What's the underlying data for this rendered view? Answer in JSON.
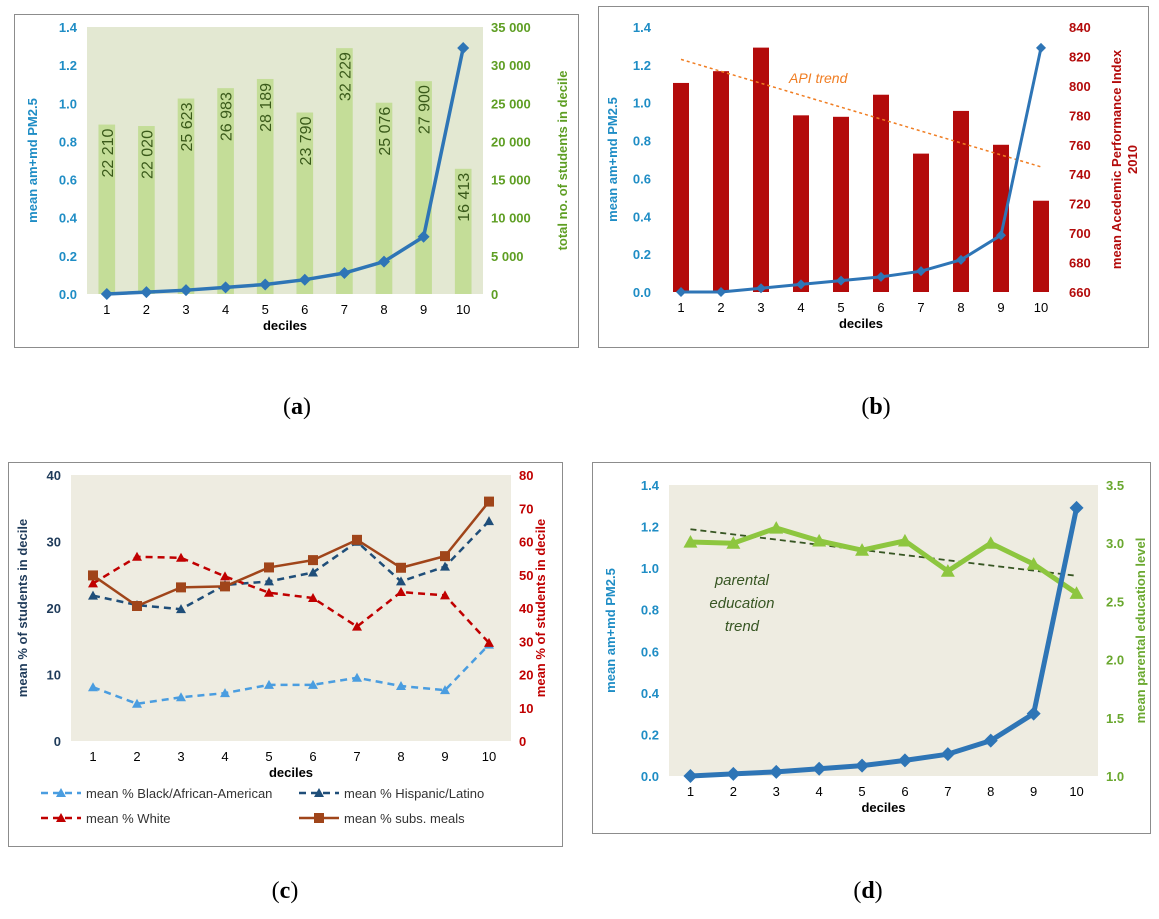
{
  "captions": {
    "a": "a",
    "b": "b",
    "c": "c",
    "d": "d"
  },
  "chart_data": [
    {
      "panel": "a",
      "type": "bar+line",
      "categories": [
        "1",
        "2",
        "3",
        "4",
        "5",
        "6",
        "7",
        "8",
        "9",
        "10"
      ],
      "xlabel": "deciles",
      "ylabel": "mean am+md PM2.5",
      "y2label": "total no. of students in decile",
      "ylim": [
        0,
        1.4
      ],
      "yticks": [
        "0.0",
        "0.2",
        "0.4",
        "0.6",
        "0.8",
        "1.0",
        "1.2",
        "1.4"
      ],
      "y2lim": [
        0,
        35000
      ],
      "y2ticks": [
        "0",
        "5 000",
        "10 000",
        "15 000",
        "20 000",
        "25 000",
        "30 000",
        "35 000"
      ],
      "bars": {
        "axis": "right",
        "color": "#c4dd98",
        "values": [
          22210,
          22020,
          25623,
          26983,
          28189,
          23790,
          32229,
          25076,
          27900,
          16413
        ],
        "labels": [
          "22 210",
          "22 020",
          "25 623",
          "26 983",
          "28 189",
          "23 790",
          "32 229",
          "25 076",
          "27 900",
          "16 413"
        ]
      },
      "line": {
        "axis": "left",
        "color": "#2e75b6",
        "values": [
          0.0,
          0.01,
          0.02,
          0.035,
          0.05,
          0.075,
          0.11,
          0.17,
          0.3,
          1.29
        ]
      },
      "plot_bg": "#e3e8d2"
    },
    {
      "panel": "b",
      "type": "bar+line",
      "categories": [
        "1",
        "2",
        "3",
        "4",
        "5",
        "6",
        "7",
        "8",
        "9",
        "10"
      ],
      "xlabel": "deciles",
      "ylabel": "mean am+md PM2.5",
      "y2label": "mean Acedemic Performance Index 2010",
      "y2label_lines": [
        "mean Acedemic Performance Index",
        "2010"
      ],
      "ylim": [
        0,
        1.4
      ],
      "yticks": [
        "0.0",
        "0.2",
        "0.4",
        "0.6",
        "0.8",
        "1.0",
        "1.2",
        "1.4"
      ],
      "y2lim": [
        660,
        840
      ],
      "y2ticks": [
        "660",
        "680",
        "700",
        "720",
        "740",
        "760",
        "780",
        "800",
        "820",
        "840"
      ],
      "bars": {
        "axis": "right",
        "color": "#b30b0b",
        "values": [
          802,
          810,
          826,
          780,
          779,
          794,
          754,
          783,
          760,
          722
        ]
      },
      "line": {
        "axis": "left",
        "color": "#2e75b6",
        "values": [
          0.0,
          0.0,
          0.02,
          0.04,
          0.06,
          0.08,
          0.11,
          0.17,
          0.3,
          1.29
        ]
      },
      "trend": {
        "label": "API trend",
        "color": "#f07d22",
        "from": [
          1,
          818
        ],
        "to": [
          10,
          745
        ]
      },
      "plot_bg": "#ffffff"
    },
    {
      "panel": "c",
      "type": "line",
      "categories": [
        "1",
        "2",
        "3",
        "4",
        "5",
        "6",
        "7",
        "8",
        "9",
        "10"
      ],
      "xlabel": "deciles",
      "ylabel": "mean % of students in decile",
      "y2label": "mean % of students in decile",
      "ylim": [
        0,
        45
      ],
      "yticks": [
        "0",
        "10",
        "20",
        "30",
        "40"
      ],
      "y2lim": [
        0,
        80
      ],
      "y2ticks": [
        "0",
        "10",
        "20",
        "30",
        "40",
        "50",
        "60",
        "70",
        "80"
      ],
      "series": [
        {
          "name": "mean % Black/African-American",
          "axis": "left",
          "color": "#4a9de0",
          "dash": true,
          "marker": "triangle",
          "values": [
            9.1,
            6.3,
            7.4,
            8.1,
            9.5,
            9.5,
            10.7,
            9.3,
            8.6,
            16.3
          ]
        },
        {
          "name": "mean % Hispanic/Latino",
          "axis": "left",
          "color": "#1f4e79",
          "dash": true,
          "marker": "triangle",
          "values": [
            24.6,
            23.0,
            22.3,
            26.4,
            27.0,
            28.5,
            33.7,
            27.0,
            29.5,
            37.2
          ]
        },
        {
          "name": "mean % White",
          "axis": "right",
          "color": "#c00000",
          "dash": true,
          "marker": "triangle",
          "values": [
            47.4,
            55.4,
            55.1,
            49.5,
            44.6,
            43.0,
            34.4,
            44.8,
            43.8,
            29.5
          ]
        },
        {
          "name": "mean % subs. meals",
          "axis": "right",
          "color": "#a0451a",
          "dash": false,
          "marker": "square",
          "values": [
            49.8,
            40.6,
            46.2,
            46.5,
            52.2,
            54.4,
            60.5,
            52.1,
            55.6,
            72.0
          ]
        }
      ],
      "plot_bg": "#eeece1"
    },
    {
      "panel": "d",
      "type": "line",
      "categories": [
        "1",
        "2",
        "3",
        "4",
        "5",
        "6",
        "7",
        "8",
        "9",
        "10"
      ],
      "xlabel": "deciles",
      "ylabel": "mean am+md PM2.5",
      "y2label": "mean parental education level",
      "ylim": [
        0,
        1.4
      ],
      "yticks": [
        "0.0",
        "0.2",
        "0.4",
        "0.6",
        "0.8",
        "1.0",
        "1.2",
        "1.4"
      ],
      "y2lim": [
        1.0,
        3.5
      ],
      "y2ticks": [
        "1.0",
        "1.5",
        "2.0",
        "2.5",
        "3.0",
        "3.5"
      ],
      "line": {
        "axis": "left",
        "color": "#2e75b6",
        "values": [
          0.0,
          0.01,
          0.02,
          0.035,
          0.05,
          0.075,
          0.105,
          0.17,
          0.3,
          1.29
        ]
      },
      "line2": {
        "axis": "right",
        "color": "#8dc63f",
        "values": [
          3.01,
          3.0,
          3.13,
          3.02,
          2.94,
          3.02,
          2.76,
          3.0,
          2.82,
          2.57
        ]
      },
      "trend": {
        "label_lines": [
          "parental",
          "education",
          "trend"
        ],
        "color": "#375623",
        "from": [
          1,
          3.12
        ],
        "to": [
          10,
          2.72
        ]
      },
      "plot_bg": "#eeece1"
    }
  ]
}
